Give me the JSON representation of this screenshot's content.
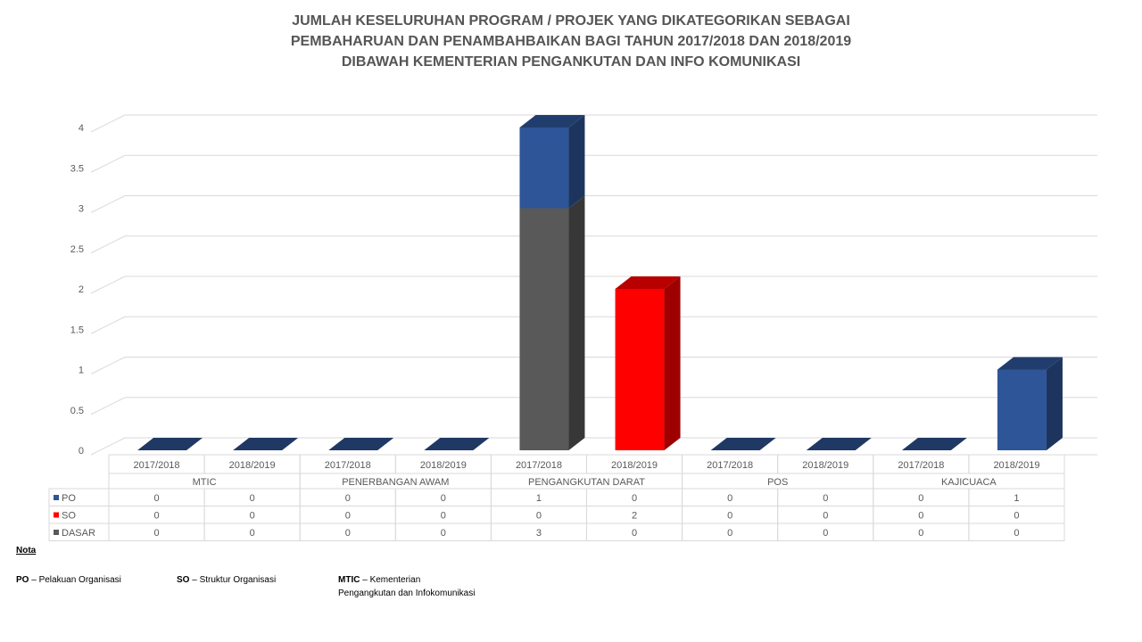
{
  "title": {
    "lines": [
      "JUMLAH KESELURUHAN PROGRAM / PROJEK YANG DIKATEGORIKAN SEBAGAI",
      "PEMBAHARUAN DAN PENAMBAHBAIKAN BAGI TAHUN 2017/2018 DAN 2018/2019",
      "DIBAWAH KEMENTERIAN PENGANKUTAN DAN INFO KOMUNIKASI"
    ]
  },
  "chart_data": {
    "type": "bar",
    "stacked": true,
    "three_d": true,
    "ylim": [
      0,
      4
    ],
    "yticks": [
      "0",
      "0.5",
      "1",
      "1.5",
      "2",
      "2.5",
      "3",
      "3.5",
      "4"
    ],
    "yticks_values": [
      0,
      0.5,
      1,
      1.5,
      2,
      2.5,
      3,
      3.5,
      4
    ],
    "grid": true,
    "categories": [
      "2017/2018",
      "2018/2019",
      "2017/2018",
      "2018/2019",
      "2017/2018",
      "2018/2019",
      "2017/2018",
      "2018/2019",
      "2017/2018",
      "2018/2019"
    ],
    "groups": [
      "MTIC",
      "PENERBANGAN AWAM",
      "PENGANGKUTAN DARAT",
      "POS",
      "KAJICUACA"
    ],
    "series": [
      {
        "name": "PO",
        "color": "#2E5597",
        "values": [
          0,
          0,
          0,
          0,
          1,
          0,
          0,
          0,
          0,
          1
        ]
      },
      {
        "name": "SO",
        "color": "#FF0000",
        "values": [
          0,
          0,
          0,
          0,
          0,
          2,
          0,
          0,
          0,
          0
        ]
      },
      {
        "name": "DASAR",
        "color": "#595959",
        "values": [
          0,
          0,
          0,
          0,
          3,
          0,
          0,
          0,
          0,
          0
        ]
      }
    ],
    "stack_order": [
      "DASAR",
      "SO",
      "PO"
    ],
    "data_table": true
  },
  "notes": {
    "heading": "Nota",
    "po_abbr": "PO",
    "po_text": "– Pelakuan Organisasi",
    "so_abbr": "SO",
    "so_text": "– Struktur Organisasi",
    "mtic_abbr": "MTIC",
    "mtic_text_1": "– Kementerian",
    "mtic_text_2": "Pengangkutan dan Infokomunikasi"
  }
}
